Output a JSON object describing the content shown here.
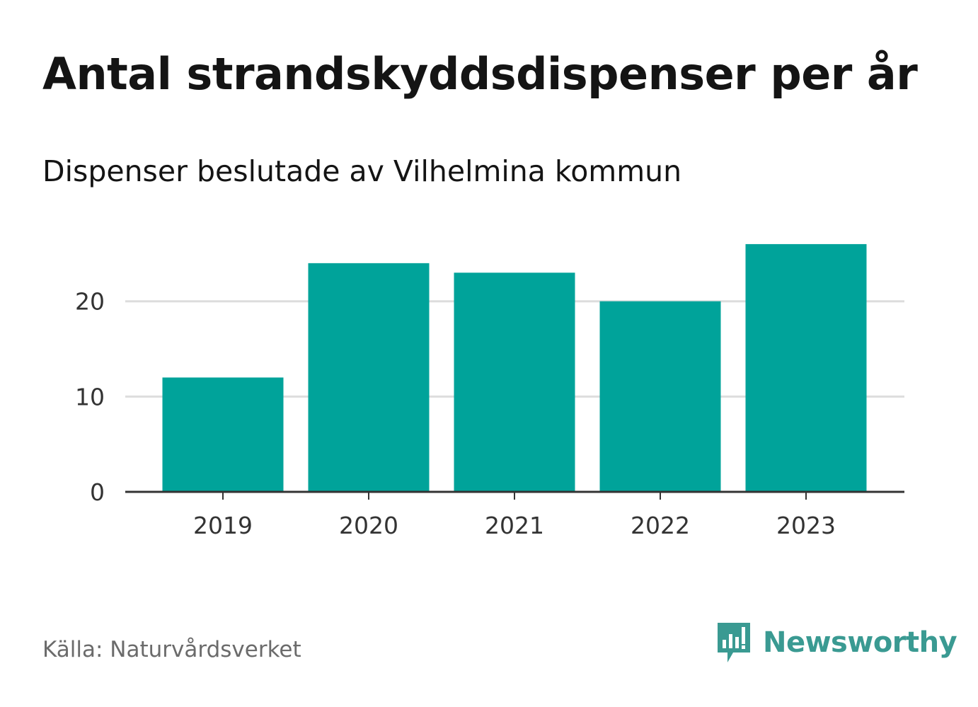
{
  "title": "Antal strandskyddsdispenser per år",
  "subtitle": "Dispenser beslutade av Vilhelmina kommun",
  "source": "Källa: Naturvårdsverket",
  "brand": {
    "name": "Newsworthy",
    "icon": "newsworthy-logo-icon"
  },
  "colors": {
    "bar": "#00a39a",
    "grid": "#dddddd",
    "axis": "#333333",
    "brand": "#3a9a92"
  },
  "chart_data": {
    "type": "bar",
    "title": "Antal strandskyddsdispenser per år",
    "subtitle": "Dispenser beslutade av Vilhelmina kommun",
    "categories": [
      "2019",
      "2020",
      "2021",
      "2022",
      "2023"
    ],
    "values": [
      12,
      24,
      23,
      20,
      26
    ],
    "xlabel": "",
    "ylabel": "",
    "ylim": [
      0,
      28
    ],
    "yticks": [
      0,
      10,
      20
    ],
    "grid": true
  }
}
